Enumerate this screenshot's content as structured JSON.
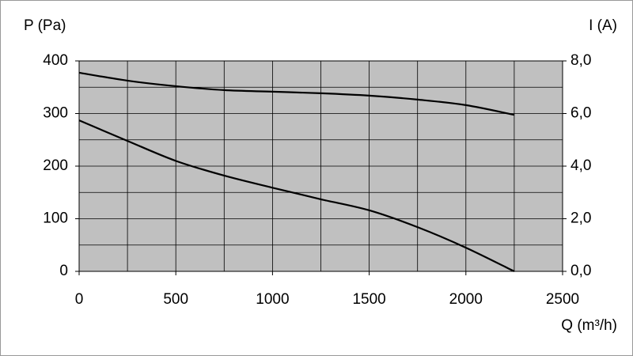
{
  "chart_data": {
    "type": "line",
    "y_label": "P (Pa)",
    "y2_label": "I (A)",
    "x_label": "Q (m³/h)",
    "x": [
      0,
      250,
      500,
      750,
      1000,
      1250,
      1500,
      1750,
      2000,
      2250
    ],
    "series": [
      {
        "name": "P",
        "color": "#000000",
        "values": [
          287,
          248,
          210,
          182,
          159,
          137,
          116,
          84,
          45,
          0
        ]
      },
      {
        "name": "I",
        "color": "#000000",
        "axis": "y2",
        "values": [
          7.55,
          7.25,
          7.04,
          6.89,
          6.83,
          6.77,
          6.68,
          6.53,
          6.32,
          5.95
        ]
      }
    ],
    "xlim": [
      0,
      2500
    ],
    "xticks": [
      0,
      500,
      1000,
      1500,
      2000,
      2500
    ],
    "xgrid": [
      0,
      250,
      500,
      750,
      1000,
      1250,
      1500,
      1750,
      2000,
      2250,
      2500
    ],
    "ylim": [
      0,
      400
    ],
    "yticks": [
      0,
      100,
      200,
      300,
      400
    ],
    "ygrid": [
      0,
      50,
      100,
      150,
      200,
      250,
      300,
      350,
      400
    ],
    "y2lim": [
      0,
      8
    ],
    "y2ticks": [
      {
        "value": 0,
        "label": "0,0"
      },
      {
        "value": 2,
        "label": "2,0"
      },
      {
        "value": 4,
        "label": "4,0"
      },
      {
        "value": 6,
        "label": "6,0"
      },
      {
        "value": 8,
        "label": "8,0"
      }
    ],
    "grid": true,
    "plot_background": "#c0c0c0"
  }
}
